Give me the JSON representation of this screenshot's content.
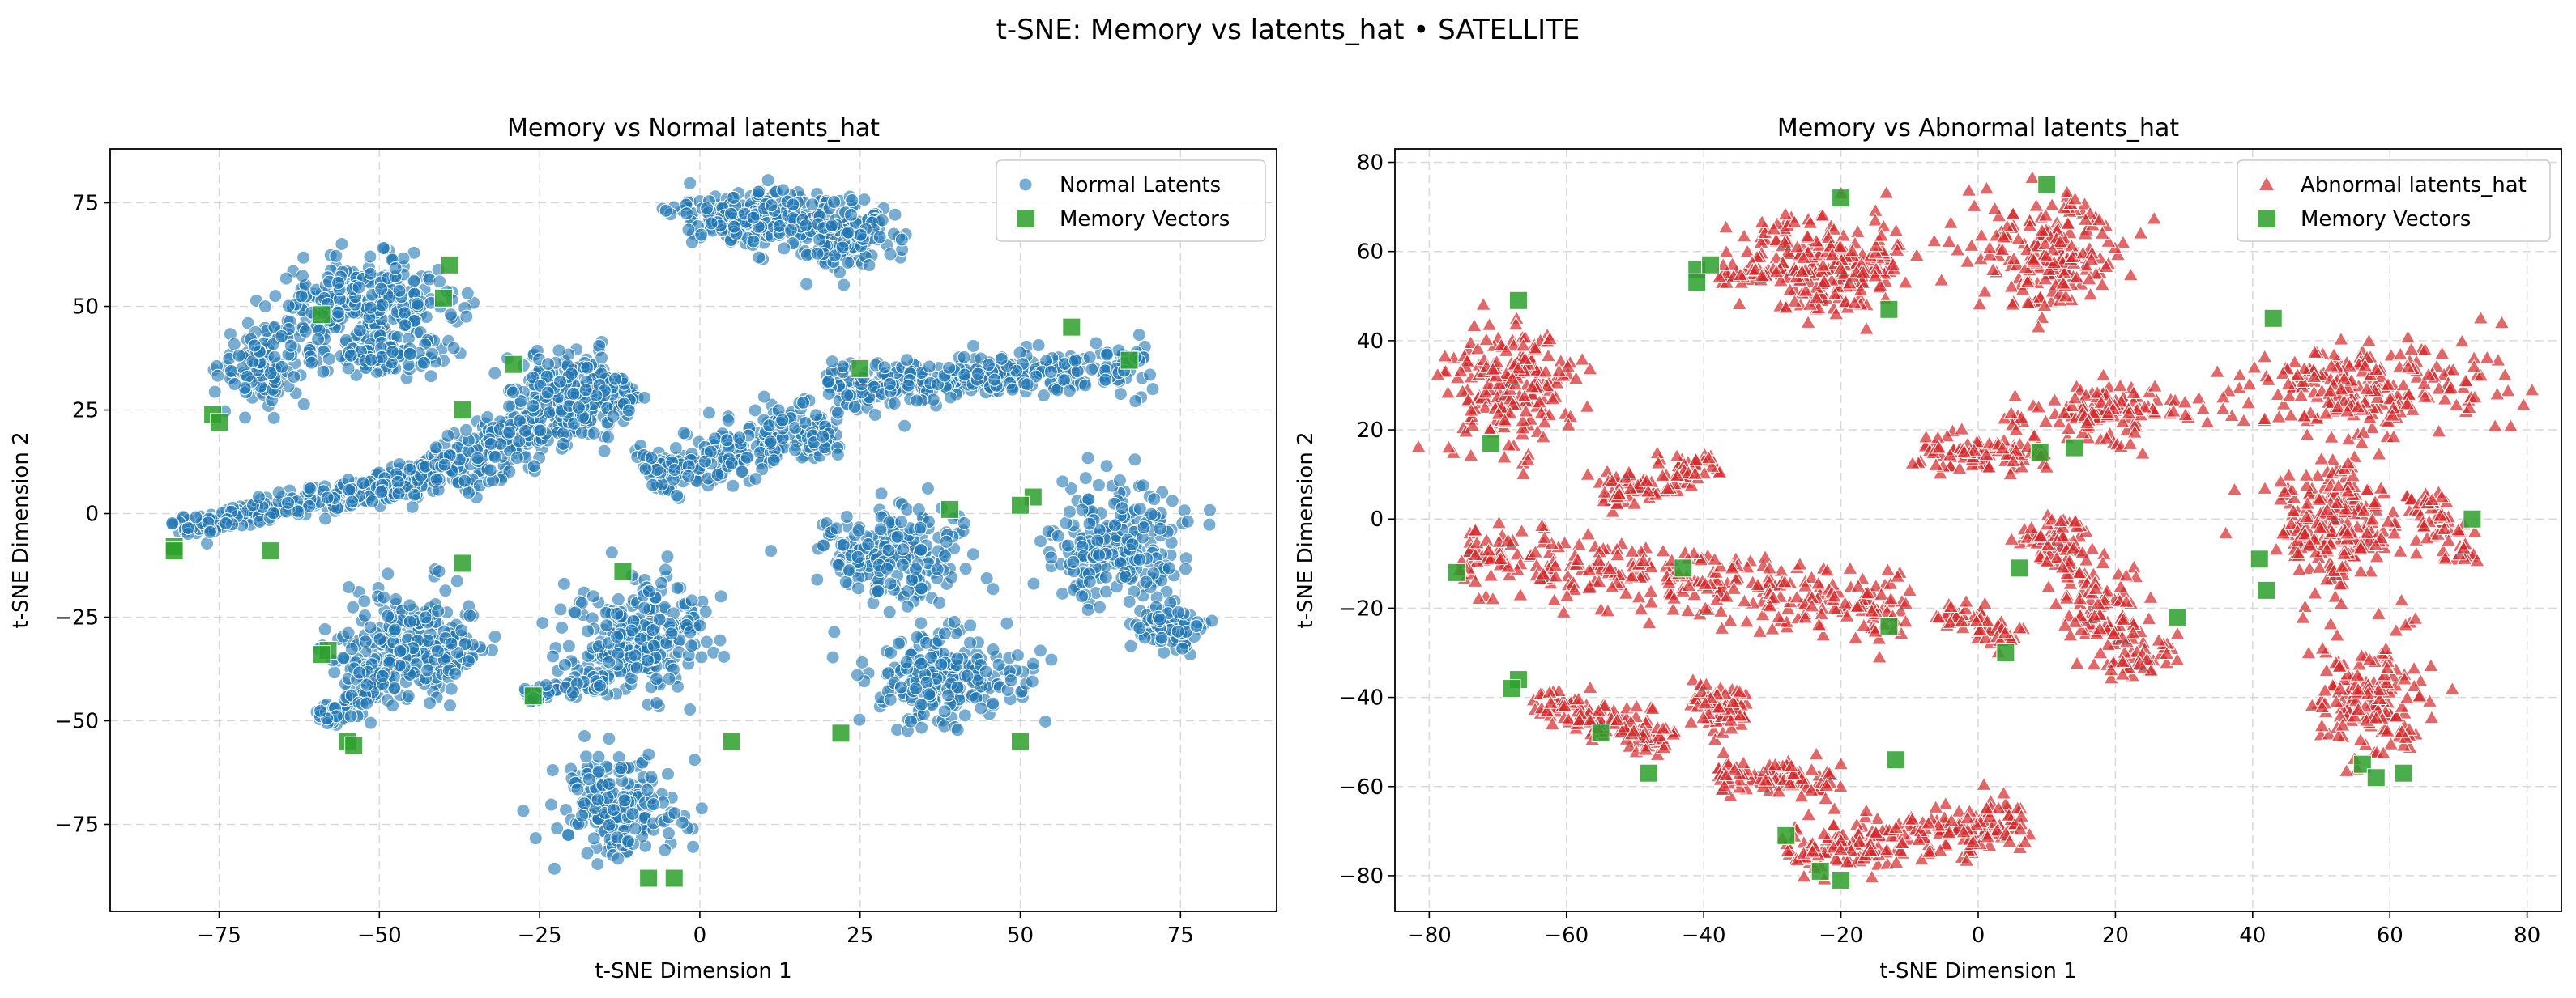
{
  "figure": {
    "suptitle": "t-SNE: Memory vs latents_hat • SATELLITE"
  },
  "colors": {
    "normal": "#1f77b4",
    "abnormal": "#d62728",
    "memory": "#2ca02c",
    "grid": "#d9d9d9"
  },
  "chart_data": [
    {
      "type": "scatter",
      "title": "Memory vs Normal latents_hat",
      "xlabel": "t-SNE Dimension 1",
      "ylabel": "t-SNE Dimension 2",
      "xlim": [
        -92,
        90
      ],
      "ylim": [
        -96,
        88
      ],
      "xticks": [
        -75,
        -50,
        -25,
        0,
        25,
        50,
        75
      ],
      "yticks": [
        -75,
        -50,
        -25,
        0,
        25,
        50,
        75
      ],
      "grid": true,
      "legend": "top-right",
      "series": [
        {
          "name": "Normal Latents",
          "marker": "circle",
          "color": "#1f77b4",
          "clusters": [
            {
              "shape": "blob",
              "cx": -52,
              "cy": 50,
              "rx": 13,
              "ry": 10,
              "n": 300
            },
            {
              "shape": "blob",
              "cx": -68,
              "cy": 36,
              "rx": 6,
              "ry": 9,
              "n": 120
            },
            {
              "shape": "blob",
              "cx": -50,
              "cy": 38,
              "rx": 9,
              "ry": 4,
              "n": 80
            },
            {
              "shape": "segment",
              "x0": -82,
              "y0": -4,
              "x1": -55,
              "y1": 5,
              "w": 3,
              "n": 160
            },
            {
              "shape": "segment",
              "x0": -55,
              "y0": 5,
              "x1": -40,
              "y1": 10,
              "w": 4,
              "n": 120
            },
            {
              "shape": "segment",
              "x0": -40,
              "y0": 10,
              "x1": -12,
              "y1": 32,
              "w": 7,
              "n": 320
            },
            {
              "shape": "blob",
              "cx": -20,
              "cy": 30,
              "rx": 8,
              "ry": 8,
              "n": 140
            },
            {
              "shape": "blob",
              "cx": 8,
              "cy": 72,
              "rx": 12,
              "ry": 6,
              "n": 220
            },
            {
              "shape": "blob",
              "cx": 23,
              "cy": 67,
              "rx": 8,
              "ry": 8,
              "n": 160
            },
            {
              "shape": "segment",
              "x0": -8,
              "y0": 8,
              "x1": 20,
              "y1": 22,
              "w": 6,
              "n": 260
            },
            {
              "shape": "segment",
              "x0": 20,
              "y0": 30,
              "x1": 70,
              "y1": 36,
              "w": 5,
              "n": 330
            },
            {
              "shape": "blob",
              "cx": -45,
              "cy": -32,
              "rx": 10,
              "ry": 11,
              "n": 260
            },
            {
              "shape": "segment",
              "x0": -59,
              "y0": -50,
              "x1": -47,
              "y1": -36,
              "w": 4,
              "n": 90
            },
            {
              "shape": "blob",
              "cx": -10,
              "cy": -30,
              "rx": 10,
              "ry": 12,
              "n": 260
            },
            {
              "shape": "segment",
              "x0": -27,
              "y0": -44,
              "x1": -15,
              "y1": -41,
              "w": 2,
              "n": 50
            },
            {
              "shape": "blob",
              "cx": -13,
              "cy": -70,
              "rx": 9,
              "ry": 11,
              "n": 200
            },
            {
              "shape": "blob",
              "cx": 30,
              "cy": -10,
              "rx": 10,
              "ry": 10,
              "n": 220
            },
            {
              "shape": "blob",
              "cx": 38,
              "cy": -40,
              "rx": 11,
              "ry": 11,
              "n": 230
            },
            {
              "shape": "blob",
              "cx": 65,
              "cy": -8,
              "rx": 9,
              "ry": 14,
              "n": 240
            },
            {
              "shape": "blob",
              "cx": 73,
              "cy": -27,
              "rx": 6,
              "ry": 5,
              "n": 80
            }
          ]
        },
        {
          "name": "Memory Vectors",
          "marker": "square",
          "color": "#2ca02c",
          "x": [
            -59,
            -39,
            -40,
            -76,
            -75,
            -29,
            -37,
            25,
            58,
            67,
            -82,
            -82,
            -67,
            39,
            52,
            50,
            -37,
            -12,
            -58,
            -59,
            -26,
            -55,
            -54,
            5,
            22,
            50,
            -8,
            -4
          ],
          "y": [
            48,
            60,
            52,
            24,
            22,
            36,
            25,
            35,
            45,
            37,
            -8,
            -9,
            -9,
            1,
            4,
            2,
            -12,
            -14,
            -33,
            -34,
            -44,
            -55,
            -56,
            -55,
            -53,
            -55,
            -88,
            -88
          ]
        }
      ]
    },
    {
      "type": "scatter",
      "title": "Memory vs Abnormal latents_hat",
      "xlabel": "t-SNE Dimension 1",
      "ylabel": "t-SNE Dimension 2",
      "xlim": [
        -85,
        85
      ],
      "ylim": [
        -88,
        83
      ],
      "xticks": [
        -80,
        -60,
        -40,
        -20,
        0,
        20,
        40,
        60,
        80
      ],
      "yticks": [
        -80,
        -60,
        -40,
        -20,
        0,
        20,
        40,
        60,
        80
      ],
      "grid": true,
      "legend": "top-right",
      "series": [
        {
          "name": "Abnormal latents_hat",
          "marker": "triangle",
          "color": "#d62728",
          "clusters": [
            {
              "shape": "blob",
              "cx": -22,
              "cy": 58,
              "rx": 11,
              "ry": 11,
              "n": 220
            },
            {
              "shape": "segment",
              "x0": -38,
              "y0": 55,
              "x1": -25,
              "y1": 55,
              "w": 2,
              "n": 50
            },
            {
              "shape": "blob",
              "cx": 10,
              "cy": 60,
              "rx": 9,
              "ry": 11,
              "n": 200
            },
            {
              "shape": "blob",
              "cx": 18,
              "cy": 24,
              "rx": 11,
              "ry": 5,
              "n": 130
            },
            {
              "shape": "segment",
              "x0": -10,
              "y0": 15,
              "x1": 10,
              "y1": 15,
              "w": 4,
              "n": 100
            },
            {
              "shape": "segment",
              "x0": 8,
              "y0": 0,
              "x1": 25,
              "y1": -35,
              "w": 5,
              "n": 200
            },
            {
              "shape": "blob",
              "cx": -68,
              "cy": 30,
              "rx": 8,
              "ry": 14,
              "n": 200
            },
            {
              "shape": "segment",
              "x0": -75,
              "y0": -8,
              "x1": -10,
              "y1": -20,
              "w": 7,
              "n": 340
            },
            {
              "shape": "segment",
              "x0": -55,
              "y0": 5,
              "x1": -38,
              "y1": 12,
              "w": 4,
              "n": 100
            },
            {
              "shape": "segment",
              "x0": -5,
              "y0": -20,
              "x1": 5,
              "y1": -27,
              "w": 3,
              "n": 60
            },
            {
              "shape": "segment",
              "x0": -65,
              "y0": -40,
              "x1": -45,
              "y1": -50,
              "w": 4,
              "n": 130
            },
            {
              "shape": "blob",
              "cx": -38,
              "cy": -42,
              "rx": 4,
              "ry": 5,
              "n": 70
            },
            {
              "shape": "segment",
              "x0": -38,
              "y0": -58,
              "x1": -20,
              "y1": -58,
              "w": 4,
              "n": 90
            },
            {
              "shape": "segment",
              "x0": -28,
              "y0": -75,
              "x1": 7,
              "y1": -68,
              "w": 5,
              "n": 230
            },
            {
              "shape": "blob",
              "cx": 55,
              "cy": 30,
              "rx": 18,
              "ry": 9,
              "n": 230
            },
            {
              "shape": "blob",
              "cx": 52,
              "cy": 0,
              "rx": 8,
              "ry": 14,
              "n": 230
            },
            {
              "shape": "blob",
              "cx": 57,
              "cy": -40,
              "rx": 7,
              "ry": 12,
              "n": 160
            },
            {
              "shape": "segment",
              "x0": 64,
              "y0": 5,
              "x1": 72,
              "y1": -10,
              "w": 3,
              "n": 60
            }
          ]
        },
        {
          "name": "Memory Vectors",
          "marker": "square",
          "color": "#2ca02c",
          "x": [
            -20,
            -41,
            -39,
            -41,
            10,
            -13,
            -67,
            -71,
            43,
            9,
            14,
            -76,
            -43,
            -13,
            6,
            29,
            4,
            41,
            42,
            72,
            -67,
            -68,
            -55,
            -48,
            -12,
            -28,
            -23,
            -20,
            56,
            62,
            58
          ],
          "y": [
            72,
            56,
            57,
            53,
            75,
            47,
            49,
            17,
            45,
            15,
            16,
            -12,
            -11,
            -24,
            -11,
            -22,
            -30,
            -9,
            -16,
            0,
            -36,
            -38,
            -48,
            -57,
            -54,
            -71,
            -79,
            -81,
            -55,
            -57,
            -58
          ]
        }
      ]
    }
  ]
}
